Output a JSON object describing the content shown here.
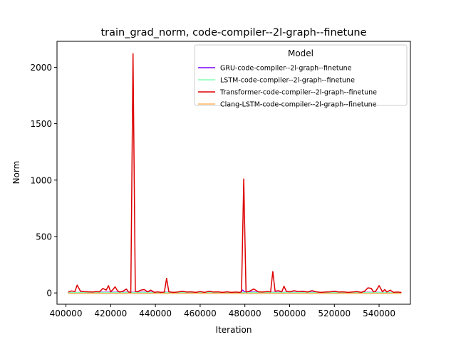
{
  "chart_data": {
    "type": "line",
    "title": "train_grad_norm, code-compiler--2l-graph--finetune",
    "xlabel": "Iteration",
    "ylabel": "Norm",
    "xlim": [
      396000,
      554000
    ],
    "ylim": [
      -100,
      2230
    ],
    "xticks": [
      400000,
      420000,
      440000,
      460000,
      480000,
      500000,
      520000,
      540000
    ],
    "xtick_labels": [
      "400000",
      "420000",
      "440000",
      "460000",
      "480000",
      "500000",
      "520000",
      "540000"
    ],
    "yticks": [
      0,
      500,
      1000,
      1500,
      2000
    ],
    "ytick_labels": [
      "0",
      "500",
      "1000",
      "1500",
      "2000"
    ],
    "grid": false,
    "legend": {
      "title": "Model",
      "placement": "top-right"
    },
    "series": [
      {
        "name": "GRU-code-compiler--2l-graph--finetune",
        "color": "#7f00ff",
        "x": [
          401000,
          410000,
          420000,
          430000,
          440000,
          450000,
          460000,
          470000,
          478000,
          479000,
          480000,
          490000,
          500000,
          510000,
          520000,
          530000,
          540000,
          550000
        ],
        "y": [
          3,
          5,
          6,
          5,
          6,
          4,
          5,
          4,
          6,
          25,
          8,
          5,
          4,
          5,
          4,
          5,
          4,
          3
        ]
      },
      {
        "name": "LSTM-code-compiler--2l-graph--finetune",
        "color": "#80ffb4",
        "x": [
          401000,
          420000,
          440000,
          460000,
          480000,
          500000,
          520000,
          540000,
          550000
        ],
        "y": [
          2,
          3,
          3,
          2,
          3,
          3,
          2,
          3,
          2
        ]
      },
      {
        "name": "Transformer-code-compiler--2l-graph--finetune",
        "color": "#dd0000",
        "x": [
          401000,
          402500,
          404000,
          405000,
          406500,
          408000,
          410000,
          412000,
          413500,
          415000,
          416500,
          418000,
          419000,
          420000,
          421000,
          422000,
          423000,
          424000,
          425500,
          427000,
          428000,
          429000,
          430000,
          431000,
          432000,
          433500,
          435000,
          436500,
          438000,
          439500,
          441000,
          442500,
          444000,
          445000,
          446000,
          448000,
          450000,
          452000,
          454000,
          456000,
          458000,
          460000,
          462000,
          464000,
          466000,
          468000,
          470000,
          472000,
          474000,
          476000,
          477500,
          478500,
          479500,
          480500,
          482000,
          484000,
          486000,
          488000,
          490000,
          491500,
          492500,
          493500,
          495000,
          496500,
          497500,
          498500,
          500000,
          502000,
          504000,
          506000,
          508000,
          510000,
          512000,
          514000,
          516000,
          518000,
          520000,
          522000,
          524000,
          526000,
          528000,
          530000,
          532000,
          533500,
          535000,
          536500,
          537500,
          538500,
          540000,
          541500,
          542500,
          543500,
          545000,
          546500,
          548000,
          550000
        ],
        "y": [
          8,
          18,
          12,
          70,
          15,
          12,
          10,
          8,
          12,
          10,
          40,
          25,
          65,
          10,
          30,
          55,
          20,
          8,
          15,
          35,
          8,
          5,
          2120,
          15,
          10,
          25,
          30,
          10,
          25,
          5,
          10,
          5,
          8,
          130,
          10,
          5,
          8,
          15,
          8,
          10,
          5,
          12,
          5,
          15,
          8,
          10,
          5,
          10,
          5,
          8,
          5,
          10,
          1010,
          8,
          15,
          35,
          10,
          8,
          12,
          10,
          190,
          15,
          20,
          10,
          60,
          15,
          10,
          20,
          12,
          15,
          8,
          20,
          10,
          5,
          8,
          10,
          15,
          8,
          10,
          5,
          8,
          12,
          5,
          15,
          45,
          40,
          10,
          15,
          65,
          10,
          30,
          8,
          25,
          5,
          8,
          5
        ]
      },
      {
        "name": "Clang-LSTM-code-compiler--2l-graph--finetune",
        "color": "#ffb360",
        "x": [
          401000,
          420000,
          440000,
          460000,
          480000,
          500000,
          520000,
          540000,
          550000
        ],
        "y": [
          -5,
          -4,
          -5,
          -4,
          -5,
          -4,
          -5,
          -4,
          -5
        ]
      }
    ]
  }
}
